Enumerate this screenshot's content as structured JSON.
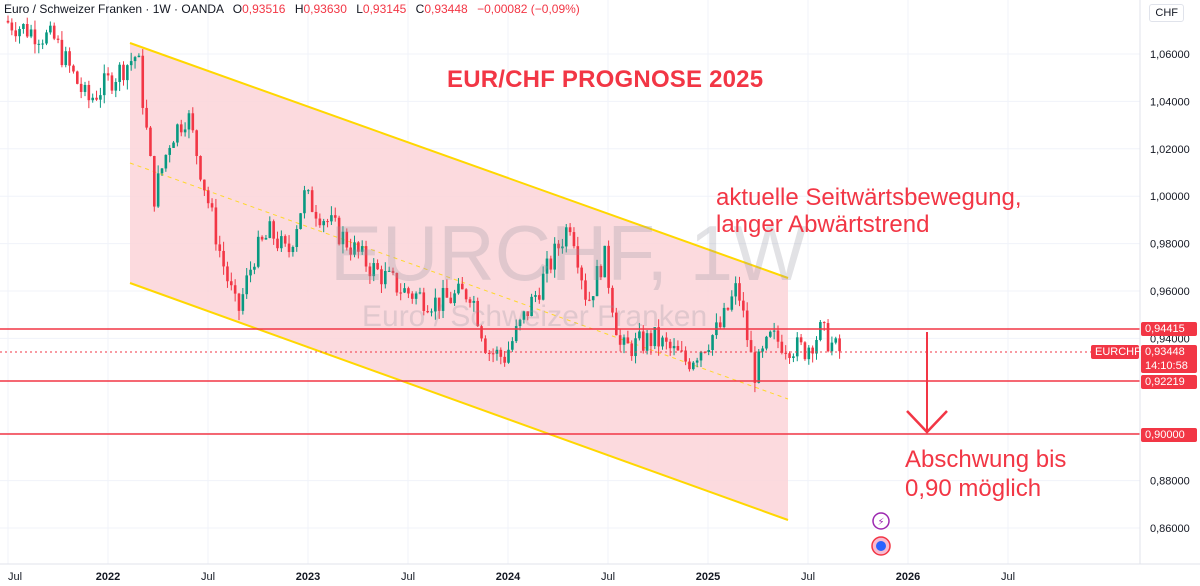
{
  "header": {
    "name": "Euro / Schweizer Franken · 1W · OANDA",
    "o_label": "O",
    "o": "0,93516",
    "h_label": "H",
    "h": "0,93630",
    "l_label": "L",
    "l": "0,93145",
    "c_label": "C",
    "c": "0,93448",
    "change": "−0,00082 (−0,09%)"
  },
  "currency": "CHF",
  "watermark": {
    "symbol": "EURCHF, 1W",
    "name": "Euro / Schweizer Franken"
  },
  "annotations": {
    "title": "EUR/CHF PROGNOSE 2025",
    "note1_l1": "aktuelle Seitwärtsbewegung,",
    "note1_l2": "langer Abwärtstrend",
    "note2_l1": "Abschwung bis",
    "note2_l2": "0,90 möglich"
  },
  "price_labels": {
    "symbol": "EURCHF",
    "last": "0,93448",
    "countdown": "14:10:58",
    "resistance": "0,94415",
    "support": "0,92219",
    "target": "0,90000"
  },
  "colors": {
    "up": "#089981",
    "down": "#f23645",
    "channel": "#ffd700",
    "channel_fill": "#fbd3d8",
    "level": "#f23645"
  },
  "chart_data": {
    "type": "candlestick",
    "timeframe": "1W",
    "x_ticks": [
      "Jul",
      "2022",
      "Jul",
      "2023",
      "Jul",
      "2024",
      "Jul",
      "2025",
      "Jul",
      "2026",
      "Jul"
    ],
    "y_ticks": [
      "1,06000",
      "1,04000",
      "1,02000",
      "1,00000",
      "0,98000",
      "0,96000",
      "0,94000",
      "0,90000",
      "0,88000",
      "0,86000"
    ],
    "ylim": [
      0.851,
      1.076
    ],
    "levels": [
      0.94415,
      0.93448,
      0.92219,
      0.9
    ],
    "channel": {
      "upper": [
        {
          "date": "2022-03",
          "y": 1.066
        },
        {
          "date": "2025-03",
          "y": 0.965
        }
      ],
      "lower": [
        {
          "date": "2022-03",
          "y": 0.963
        },
        {
          "date": "2025-03",
          "y": 0.865
        }
      ]
    },
    "price_path": [
      {
        "date": "2021-07",
        "y": 1.074
      },
      {
        "date": "2021-10",
        "y": 1.066
      },
      {
        "date": "2021-12",
        "y": 1.04
      },
      {
        "date": "2022-03",
        "y": 1.06
      },
      {
        "date": "2022-04",
        "y": 1.0
      },
      {
        "date": "2022-05",
        "y": 1.025
      },
      {
        "date": "2022-06",
        "y": 1.035
      },
      {
        "date": "2022-07",
        "y": 1.005
      },
      {
        "date": "2022-08",
        "y": 0.975
      },
      {
        "date": "2022-09",
        "y": 0.95
      },
      {
        "date": "2022-10",
        "y": 0.975
      },
      {
        "date": "2022-11",
        "y": 0.985
      },
      {
        "date": "2022-12",
        "y": 0.975
      },
      {
        "date": "2023-01",
        "y": 1.0
      },
      {
        "date": "2023-03",
        "y": 0.985
      },
      {
        "date": "2023-05",
        "y": 0.97
      },
      {
        "date": "2023-07",
        "y": 0.96
      },
      {
        "date": "2023-09",
        "y": 0.955
      },
      {
        "date": "2023-11",
        "y": 0.96
      },
      {
        "date": "2023-12",
        "y": 0.935
      },
      {
        "date": "2024-01",
        "y": 0.932
      },
      {
        "date": "2024-03",
        "y": 0.96
      },
      {
        "date": "2024-05",
        "y": 0.99
      },
      {
        "date": "2024-06",
        "y": 0.955
      },
      {
        "date": "2024-07",
        "y": 0.975
      },
      {
        "date": "2024-08",
        "y": 0.935
      },
      {
        "date": "2024-10",
        "y": 0.94
      },
      {
        "date": "2024-12",
        "y": 0.93
      },
      {
        "date": "2025-02",
        "y": 0.945
      },
      {
        "date": "2025-03",
        "y": 0.962
      },
      {
        "date": "2025-04",
        "y": 0.925
      },
      {
        "date": "2025-05",
        "y": 0.94
      },
      {
        "date": "2025-07",
        "y": 0.935
      },
      {
        "date": "2025-08",
        "y": 0.943
      },
      {
        "date": "2025-09",
        "y": 0.9345
      }
    ]
  }
}
